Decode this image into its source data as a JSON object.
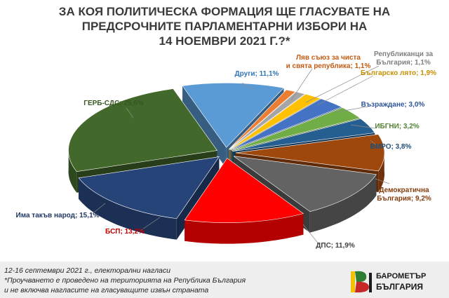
{
  "title": {
    "line1": "ЗА КОЯ ПОЛИТИЧЕСКА ФОРМАЦИЯ ЩЕ ГЛАСУВАТЕ НА",
    "line2": "ПРЕДСРОЧНИТЕ ПАРЛАМЕНТАРНИ ИЗБОРИ НА",
    "line3": "14 НОЕМВРИ 2021 Г.?*"
  },
  "chart_data": {
    "type": "pie",
    "slices": [
      {
        "label": "Други; 11,1%",
        "value": 11.1,
        "color": "#5b9bd5"
      },
      {
        "label": "Ляв съюз за чиста и свята република; 1,1%",
        "value": 1.1,
        "color": "#ed7d31"
      },
      {
        "label": "Републиканци за България; 1,1%",
        "value": 1.1,
        "color": "#a5a5a5"
      },
      {
        "label": "Българско лято; 1,9%",
        "value": 1.9,
        "color": "#ffc000"
      },
      {
        "label": "Възраждане; 3,0%",
        "value": 3.0,
        "color": "#4472c4"
      },
      {
        "label": "ИБГНИ; 3,2%",
        "value": 3.2,
        "color": "#70ad47"
      },
      {
        "label": "ВМРО; 3,8%",
        "value": 3.8,
        "color": "#255e91"
      },
      {
        "label": "Демократична България; 9,2%",
        "value": 9.2,
        "color": "#9e480e"
      },
      {
        "label": "ДПС; 11,9%",
        "value": 11.9,
        "color": "#636363"
      },
      {
        "label": "БСП; 13,2%",
        "value": 13.2,
        "color": "#ff0000"
      },
      {
        "label": "Има такъв народ; 15,1%",
        "value": 15.1,
        "color": "#264478"
      },
      {
        "label": "ГЕРБ-СДС; 25,6%",
        "value": 25.6,
        "color": "#43682b"
      }
    ]
  },
  "footer": {
    "line1": "12-16 септември 2021 г., електорални нагласи",
    "line2": "*Проучването е проведено на територията на Република България",
    "line3": "и не включва нагласите на гласуващите извън страната"
  },
  "logo": {
    "line1": "БАРОМЕТЪР",
    "line2": "БЪЛГАРИЯ",
    "colors": [
      "#f2c200",
      "#2e7d32",
      "#c62828",
      "#1a1a1a"
    ]
  }
}
